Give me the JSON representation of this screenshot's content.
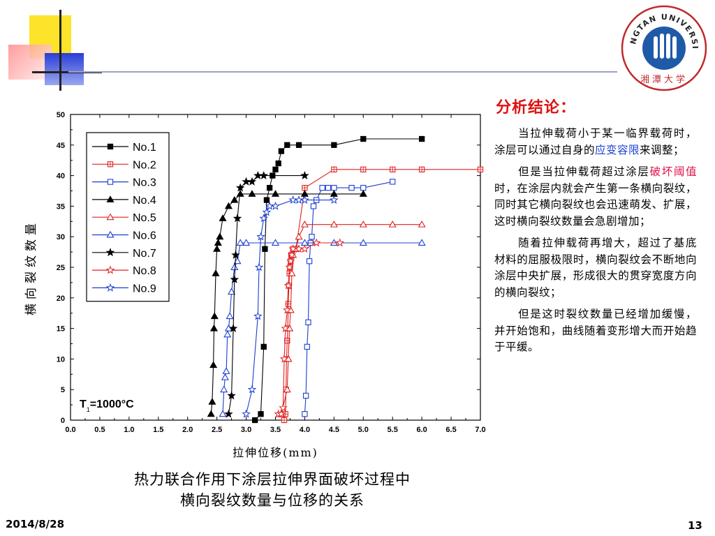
{
  "slide": {
    "date": "2014/8/28",
    "page_number": "13",
    "logo": {
      "arc_text": "XIANGTAN UNIVERSITY",
      "chinese_name": "湘潭大学"
    }
  },
  "caption": {
    "line1": "热力联合作用下涂层拉伸界面破坏过程中",
    "line2": "横向裂纹数量与位移的关系"
  },
  "conclusions": {
    "title": "分析结论：",
    "p1": {
      "before": "当拉伸载荷小于某一临界载荷时，涂层可以通过自身的",
      "highlight": "应变容限",
      "after": "来调整；"
    },
    "p2": {
      "before": "但是当拉伸载荷超过涂层",
      "highlight": "破坏阈值",
      "after": "时，在涂层内就会产生第一条横向裂纹，同时其它横向裂纹也会迅速萌发、扩展，这时横向裂纹数量会急剧增加；"
    },
    "p3": "随着拉伸载荷再增大，超过了基底材料的屈服极限时，横向裂纹会不断地向涂层中央扩展，形成很大的贯穿宽度方向的横向裂纹；",
    "p4": "但是这时裂纹数量已经增加缓慢，并开始饱和，曲线随着变形增大而开始趋于平缓。",
    "highlight_colors": {
      "blue": "#1a3fd0",
      "red": "#e0104a"
    }
  },
  "chart_data": {
    "type": "line",
    "title": "",
    "xlabel": "拉伸位移(mm)",
    "ylabel": "横向裂纹数量",
    "xlim": [
      0,
      7
    ],
    "ylim": [
      0,
      50
    ],
    "xticks": [
      "0.0",
      "0.5",
      "1.0",
      "1.5",
      "2.0",
      "2.5",
      "3.0",
      "3.5",
      "4.0",
      "4.5",
      "5.0",
      "5.5",
      "6.0",
      "6.5",
      "7.0"
    ],
    "yticks": [
      "0",
      "5",
      "10",
      "15",
      "20",
      "25",
      "30",
      "35",
      "40",
      "45",
      "50"
    ],
    "annotation": {
      "text": "T=1000°C",
      "main": "T",
      "subscript": "1",
      "rest": "=1000°C"
    },
    "legend_position": "upper-left",
    "series": [
      {
        "name": "No.1",
        "color": "#000000",
        "marker": "square",
        "fill": true,
        "x": [
          3.15,
          3.25,
          3.3,
          3.32,
          3.35,
          3.4,
          3.45,
          3.5,
          3.55,
          3.6,
          3.7,
          3.9,
          4.5,
          5.0,
          6.0
        ],
        "y": [
          0,
          1,
          12,
          28,
          36,
          38,
          40,
          41,
          42,
          44,
          45,
          45,
          45,
          46,
          46
        ]
      },
      {
        "name": "No.2",
        "color": "#e02020",
        "marker": "square-cross",
        "fill": false,
        "x": [
          3.65,
          3.67,
          3.68,
          3.69,
          3.7,
          3.71,
          3.72,
          3.73,
          3.74,
          3.75,
          3.76,
          3.77,
          3.78,
          3.8,
          3.85,
          4.0,
          4.5,
          5.0,
          5.5,
          6.0,
          7.0
        ],
        "y": [
          0,
          1,
          5,
          10,
          13,
          15,
          19,
          22,
          24,
          25,
          26,
          27,
          27,
          28,
          28,
          38,
          41,
          41,
          41,
          41,
          41
        ]
      },
      {
        "name": "No.3",
        "color": "#1a3fd0",
        "marker": "square",
        "fill": false,
        "x": [
          4.0,
          4.02,
          4.04,
          4.06,
          4.08,
          4.1,
          4.12,
          4.15,
          4.2,
          4.3,
          4.4,
          4.5,
          4.8,
          5.0,
          5.5
        ],
        "y": [
          1,
          4,
          12,
          16,
          26,
          29,
          30,
          35,
          36,
          38,
          38,
          38,
          38,
          38,
          39
        ]
      },
      {
        "name": "No.4",
        "color": "#000000",
        "marker": "triangle",
        "fill": true,
        "x": [
          2.4,
          2.42,
          2.44,
          2.45,
          2.46,
          2.48,
          2.5,
          2.52,
          2.55,
          2.6,
          2.7,
          2.8,
          2.9,
          3.1,
          3.5,
          4.0,
          4.5,
          5.0
        ],
        "y": [
          1,
          3,
          9,
          15,
          17,
          24,
          28,
          29,
          30,
          33,
          35,
          36,
          37,
          37,
          37,
          37,
          37,
          37
        ]
      },
      {
        "name": "No.5",
        "color": "#e02020",
        "marker": "triangle",
        "fill": false,
        "x": [
          3.6,
          3.7,
          3.72,
          3.74,
          3.76,
          3.78,
          3.8,
          3.85,
          3.9,
          4.0,
          4.5,
          5.0,
          5.5,
          6.0
        ],
        "y": [
          1,
          5,
          10,
          15,
          18,
          24,
          27,
          28,
          30,
          32,
          32,
          32,
          32,
          32
        ]
      },
      {
        "name": "No.6",
        "color": "#1a3fd0",
        "marker": "triangle",
        "fill": false,
        "x": [
          2.6,
          2.62,
          2.64,
          2.66,
          2.68,
          2.7,
          2.72,
          2.75,
          2.8,
          2.85,
          2.9,
          3.0,
          3.5,
          4.0,
          4.5,
          5.0,
          6.0
        ],
        "y": [
          1,
          5,
          7,
          8,
          14,
          15,
          17,
          21,
          25,
          26,
          29,
          29,
          29,
          29,
          29,
          29,
          29
        ]
      },
      {
        "name": "No.7",
        "color": "#000000",
        "marker": "star",
        "fill": true,
        "x": [
          2.7,
          2.75,
          2.78,
          2.8,
          2.82,
          2.85,
          2.9,
          3.0,
          3.1,
          3.2,
          3.3,
          4.0
        ],
        "y": [
          1,
          4,
          15,
          23,
          27,
          33,
          38,
          39,
          39,
          40,
          40,
          40
        ]
      },
      {
        "name": "No.8",
        "color": "#e02020",
        "marker": "star",
        "fill": false,
        "x": [
          3.55,
          3.6,
          3.63,
          3.65,
          3.67,
          3.7,
          3.72,
          3.74,
          3.76,
          3.78,
          3.8,
          3.9,
          4.0,
          4.2,
          4.6
        ],
        "y": [
          1,
          1,
          2,
          10,
          15,
          18,
          22,
          25,
          26,
          27,
          28,
          28,
          28,
          29,
          29
        ]
      },
      {
        "name": "No.9",
        "color": "#1a3fd0",
        "marker": "star",
        "fill": false,
        "x": [
          3.0,
          3.1,
          3.2,
          3.22,
          3.25,
          3.3,
          3.35,
          3.4,
          3.5,
          3.8,
          3.9,
          4.0,
          4.5
        ],
        "y": [
          1,
          5,
          17,
          25,
          30,
          33,
          34,
          35,
          35,
          36,
          36,
          36,
          36
        ]
      }
    ]
  }
}
